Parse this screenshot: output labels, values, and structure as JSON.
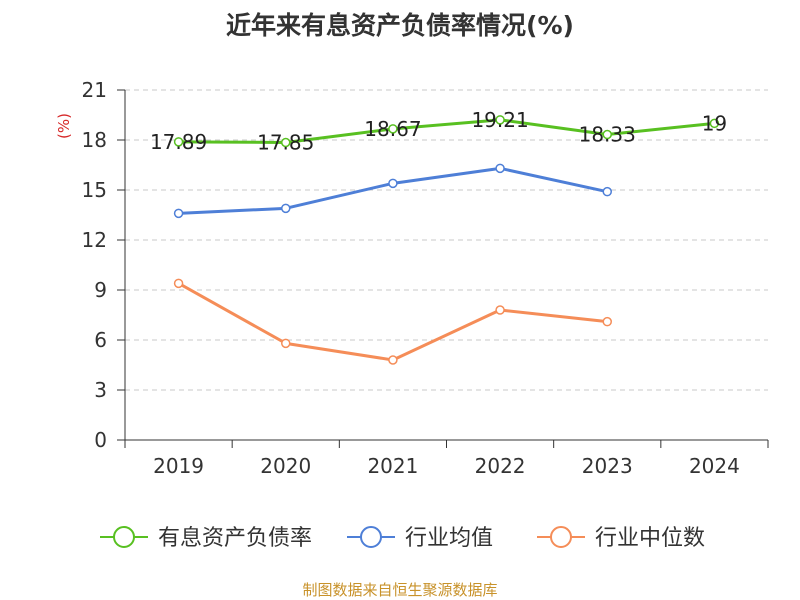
{
  "page": {
    "title": "近年来有息资产负债率情况(%)",
    "source": "制图数据来自恒生聚源数据库"
  },
  "chart_data": {
    "type": "line",
    "title": "近年来有息资产负债率情况(%)",
    "xlabel": "",
    "ylabel": "(%)",
    "categories": [
      "2019",
      "2020",
      "2021",
      "2022",
      "2023",
      "2024"
    ],
    "yticks": [
      "0",
      "3",
      "6",
      "9",
      "12",
      "15",
      "18",
      "21"
    ],
    "ylim": [
      0,
      21
    ],
    "grid": true,
    "legend_position": "bottom",
    "series": [
      {
        "name": "有息资产负债率",
        "color": "#58c021",
        "values": [
          17.89,
          17.85,
          18.67,
          19.21,
          18.33,
          19
        ],
        "labels": [
          "17.89",
          "17.85",
          "18.67",
          "19.21",
          "18.33",
          "19"
        ]
      },
      {
        "name": "行业均值",
        "color": "#4e7fd7",
        "values": [
          13.6,
          13.9,
          15.4,
          16.3,
          14.9,
          null
        ]
      },
      {
        "name": "行业中位数",
        "color": "#f58d58",
        "values": [
          9.4,
          5.8,
          4.8,
          7.8,
          7.1,
          null
        ]
      }
    ]
  }
}
